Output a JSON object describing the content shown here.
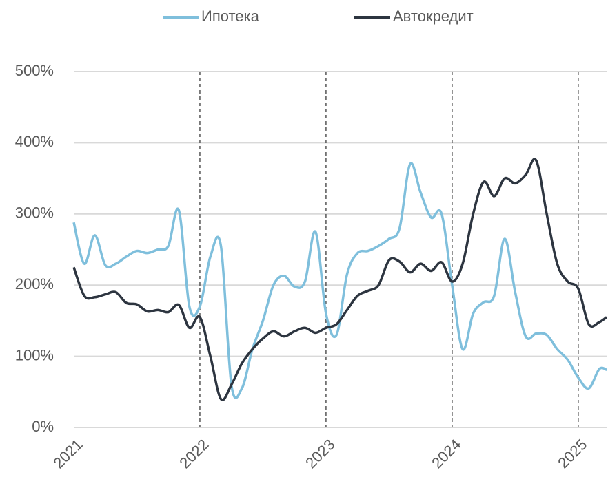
{
  "chart_data": {
    "type": "line",
    "x": [
      0,
      1,
      2,
      3,
      4,
      5,
      6,
      7,
      8,
      9,
      10,
      11,
      12,
      13,
      14,
      15,
      16,
      17,
      18,
      19,
      20,
      21,
      22,
      23,
      24,
      25,
      26,
      27,
      28,
      29,
      30,
      31,
      32,
      33,
      34,
      35,
      36,
      37,
      38,
      39,
      40,
      41,
      42,
      43,
      44,
      45,
      46,
      47,
      48,
      49,
      50,
      50.7
    ],
    "series": [
      {
        "name": "Ипотека",
        "color": "#7fbfdc",
        "values": [
          288,
          230,
          270,
          228,
          230,
          240,
          248,
          245,
          250,
          255,
          305,
          170,
          170,
          240,
          255,
          60,
          55,
          110,
          150,
          200,
          213,
          198,
          205,
          275,
          160,
          130,
          215,
          245,
          248,
          255,
          265,
          280,
          370,
          330,
          295,
          300,
          200,
          110,
          160,
          176,
          185,
          265,
          190,
          128,
          132,
          130,
          110,
          95,
          70,
          55,
          82,
          81
        ]
      },
      {
        "name": "Автокредит",
        "color": "#2d3540",
        "values": [
          225,
          185,
          183,
          187,
          190,
          175,
          173,
          163,
          165,
          162,
          172,
          140,
          155,
          100,
          40,
          60,
          90,
          110,
          125,
          135,
          128,
          135,
          140,
          133,
          140,
          145,
          165,
          185,
          192,
          200,
          235,
          233,
          218,
          230,
          220,
          232,
          205,
          230,
          300,
          345,
          325,
          350,
          343,
          355,
          375,
          300,
          230,
          205,
          195,
          145,
          148,
          155
        ]
      }
    ],
    "xlim": [
      0,
      50.7
    ],
    "xticks": [
      {
        "value": 0,
        "label": "2021"
      },
      {
        "value": 12,
        "label": "2022"
      },
      {
        "value": 24,
        "label": "2023"
      },
      {
        "value": 36,
        "label": "2024"
      },
      {
        "value": 48,
        "label": "2025"
      }
    ],
    "ylim": [
      0,
      500
    ],
    "yticks": [
      {
        "value": 0,
        "label": "0%"
      },
      {
        "value": 100,
        "label": "100%"
      },
      {
        "value": 200,
        "label": "200%"
      },
      {
        "value": 300,
        "label": "300%"
      },
      {
        "value": 400,
        "label": "400%"
      },
      {
        "value": 500,
        "label": "500%"
      }
    ],
    "grid": true,
    "legend": "top"
  }
}
